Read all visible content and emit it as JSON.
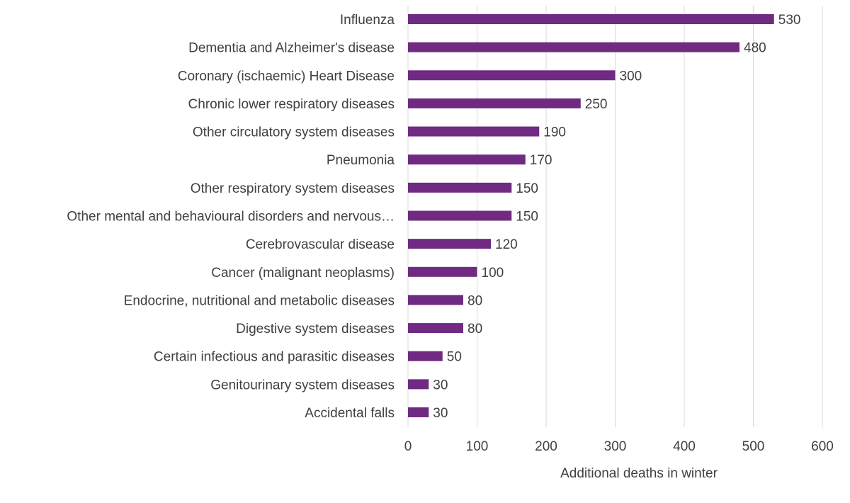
{
  "chart_data": {
    "type": "bar",
    "orientation": "horizontal",
    "categories": [
      "Influenza",
      "Dementia and Alzheimer's disease",
      "Coronary (ischaemic) Heart Disease",
      "Chronic lower respiratory diseases",
      "Other circulatory system diseases",
      "Pneumonia",
      "Other respiratory system diseases",
      "Other mental and behavioural disorders and nervous…",
      "Cerebrovascular disease",
      "Cancer (malignant neoplasms)",
      "Endocrine, nutritional and metabolic diseases",
      "Digestive system diseases",
      "Certain infectious and parasitic diseases",
      "Genitourinary system diseases",
      "Accidental falls"
    ],
    "values": [
      530,
      480,
      300,
      250,
      190,
      170,
      150,
      150,
      120,
      100,
      80,
      80,
      50,
      30,
      30
    ],
    "title": "",
    "xlabel": "Additional deaths in winter",
    "ylabel": "",
    "xlim": [
      0,
      600
    ],
    "xticks": [
      0,
      100,
      200,
      300,
      400,
      500,
      600
    ],
    "grid": "vertical",
    "legend": "none",
    "data_labels": true,
    "bar_color": "#702a82",
    "grid_color": "#d9d9d9"
  }
}
